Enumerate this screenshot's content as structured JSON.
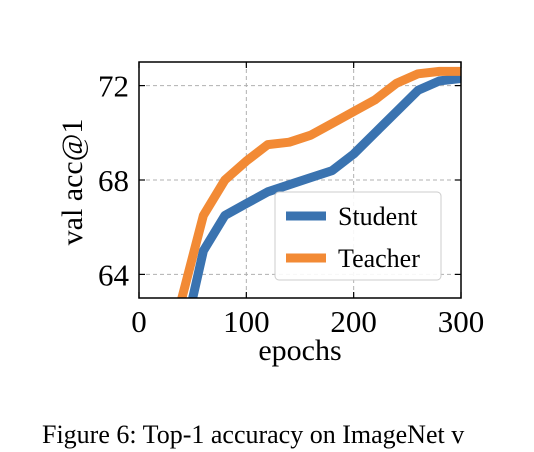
{
  "chart_data": {
    "type": "line",
    "title": "",
    "xlabel": "epochs",
    "ylabel": "val acc@1",
    "xlim": [
      0,
      300
    ],
    "ylim": [
      63,
      73
    ],
    "xticks": [
      0,
      100,
      200,
      300
    ],
    "yticks": [
      64,
      68,
      72
    ],
    "xtick_labels": [
      "0",
      "100",
      "200",
      "300"
    ],
    "ytick_labels": [
      "64",
      "68",
      "72"
    ],
    "grid": true,
    "legend": "lower-right",
    "series": [
      {
        "name": "Student",
        "color": "#3a73b0",
        "x": [
          40,
          50,
          60,
          80,
          100,
          120,
          140,
          160,
          180,
          200,
          220,
          240,
          260,
          280,
          300
        ],
        "y": [
          58.0,
          63.0,
          65.0,
          66.5,
          67.0,
          67.5,
          67.8,
          68.1,
          68.4,
          69.1,
          70.0,
          70.9,
          71.8,
          72.2,
          72.3
        ]
      },
      {
        "name": "Teacher",
        "color": "#f28a35",
        "x": [
          30,
          40,
          60,
          80,
          100,
          120,
          140,
          160,
          180,
          200,
          220,
          240,
          260,
          280,
          300
        ],
        "y": [
          58.0,
          63.0,
          66.5,
          68.0,
          68.8,
          69.5,
          69.6,
          69.9,
          70.4,
          70.9,
          71.4,
          72.1,
          72.5,
          72.6,
          72.6
        ]
      }
    ]
  },
  "caption": "Figure 6: Top-1 accuracy on ImageNet v"
}
